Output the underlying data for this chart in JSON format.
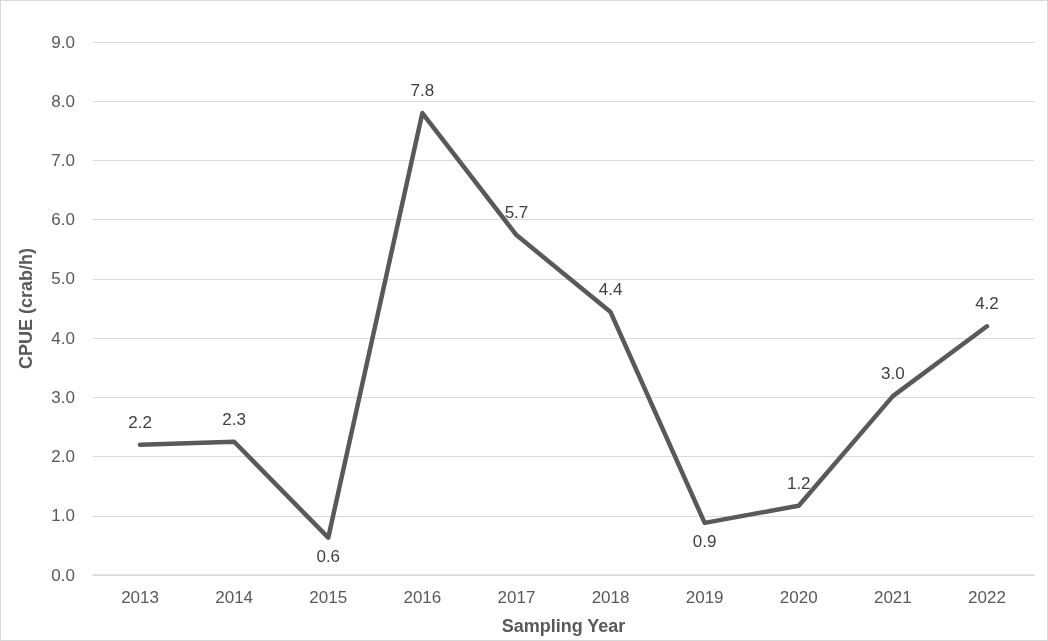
{
  "chart_data": {
    "type": "line",
    "xlabel": "Sampling Year",
    "ylabel": "CPUE (crab/h)",
    "categories": [
      "2013",
      "2014",
      "2015",
      "2016",
      "2017",
      "2018",
      "2019",
      "2020",
      "2021",
      "2022"
    ],
    "series": [
      {
        "color": "#595959",
        "values": [
          2.2,
          2.25,
          0.63,
          7.8,
          5.74,
          4.44,
          0.88,
          1.17,
          3.02,
          4.2
        ],
        "value_labels": [
          "2.2",
          "2.3",
          "0.6",
          "7.8",
          "5.7",
          "4.4",
          "0.9",
          "1.2",
          "3.0",
          "4.2"
        ]
      }
    ],
    "ylim": [
      0,
      9
    ],
    "yticks": [
      {
        "value": 0,
        "label": "0.0"
      },
      {
        "value": 1,
        "label": "1.0"
      },
      {
        "value": 2,
        "label": "2.0"
      },
      {
        "value": 3,
        "label": "3.0"
      },
      {
        "value": 4,
        "label": "4.0"
      },
      {
        "value": 5,
        "label": "5.0"
      },
      {
        "value": 6,
        "label": "6.0"
      },
      {
        "value": 7,
        "label": "7.0"
      },
      {
        "value": 8,
        "label": "8.0"
      },
      {
        "value": 9,
        "label": "9.0"
      }
    ],
    "grid": "y",
    "marker": "none",
    "line_style": "solid"
  }
}
